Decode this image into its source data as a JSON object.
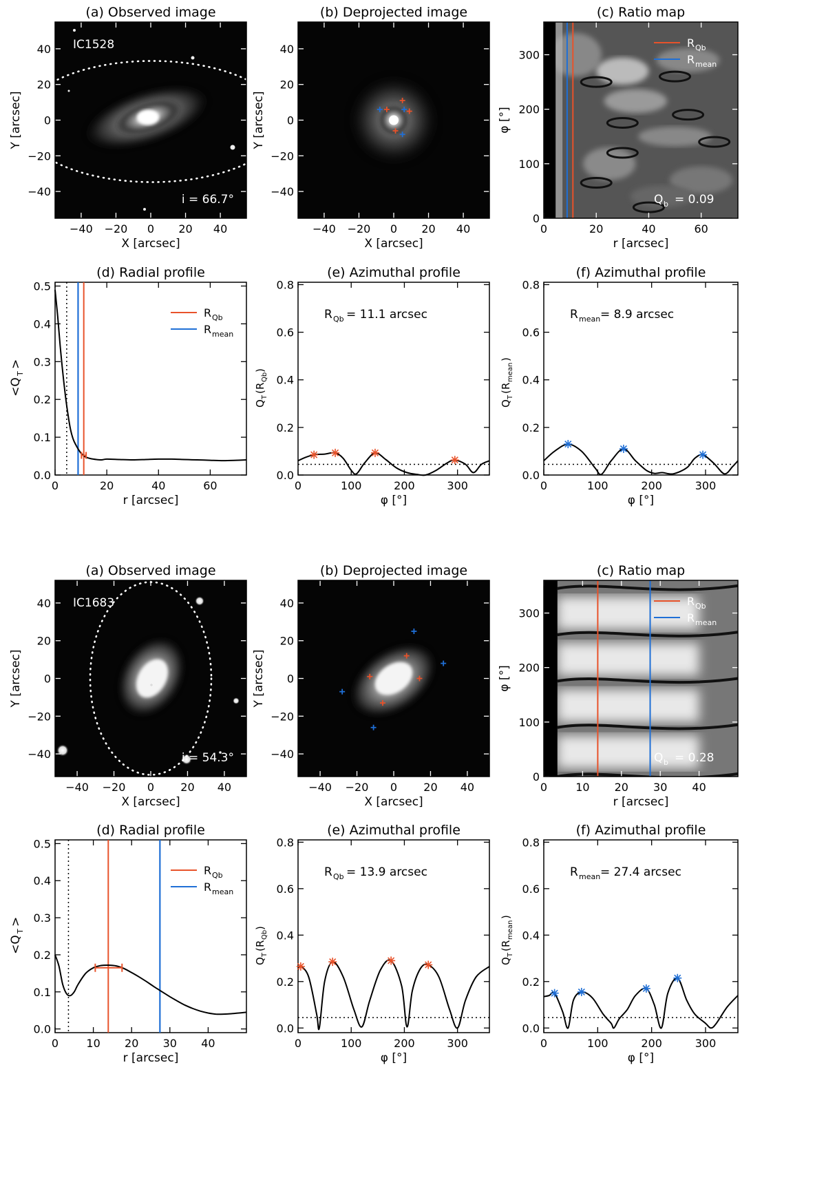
{
  "colors": {
    "qb": "#e8522a",
    "mean": "#1f6fd6",
    "axis": "#000000"
  },
  "galaxies": [
    {
      "name": "IC1528",
      "inclination_label": "i =  66.7°",
      "qb_label": "Q",
      "qb_sub": "b",
      "qb_value": "=   0.09",
      "panels": {
        "a": {
          "title": "(a) Observed image",
          "xlabel": "X [arcsec]",
          "ylabel": "Y [arcsec]",
          "xticks": [
            "−40",
            "−20",
            "0",
            "20",
            "40"
          ],
          "xtick_values": [
            -40,
            -20,
            0,
            20,
            40
          ],
          "yticks": [
            "−40",
            "−20",
            "0",
            "20",
            "40"
          ],
          "ytick_values": [
            -40,
            -20,
            0,
            20,
            40
          ],
          "xlim": [
            -55,
            55
          ],
          "ylim": [
            -55,
            55
          ]
        },
        "b": {
          "title": "(b) Deprojected image",
          "xlabel": "X [arcsec]",
          "ylabel": "Y [arcsec]",
          "xticks": [
            "−40",
            "−20",
            "0",
            "20",
            "40"
          ],
          "xtick_values": [
            -40,
            -20,
            0,
            20,
            40
          ],
          "yticks": [
            "−40",
            "−20",
            "0",
            "20",
            "40"
          ],
          "ytick_values": [
            -40,
            -20,
            0,
            20,
            40
          ],
          "xlim": [
            -55,
            55
          ],
          "ylim": [
            -55,
            55
          ]
        },
        "c": {
          "title": "(c) Ratio map",
          "xlabel": "r [arcsec]",
          "ylabel": "φ [°]",
          "xticks": [
            "0",
            "20",
            "40",
            "60"
          ],
          "xtick_values": [
            0,
            20,
            40,
            60
          ],
          "yticks": [
            "0",
            "100",
            "200",
            "300"
          ],
          "ytick_values": [
            0,
            100,
            200,
            300
          ],
          "xlim": [
            0,
            74
          ],
          "ylim": [
            0,
            360
          ],
          "r_qb": 11.1,
          "r_mean": 8.9,
          "r_mask": 4.5
        },
        "d": {
          "title": "(d) Radial profile",
          "xlabel": "r [arcsec]",
          "ylabel": "<Q",
          "ylabel_sub": "T",
          "ylabel_end": ">",
          "xticks": [
            "0",
            "20",
            "40",
            "60"
          ],
          "xtick_values": [
            0,
            20,
            40,
            60
          ],
          "yticks": [
            "0.0",
            "0.1",
            "0.2",
            "0.3",
            "0.4",
            "0.5"
          ],
          "ytick_values": [
            0,
            0.1,
            0.2,
            0.3,
            0.4,
            0.5
          ],
          "xlim": [
            0,
            74
          ],
          "ylim": [
            0,
            0.51
          ],
          "r_qb": 11.1,
          "r_mean": 8.9,
          "r_dotted": 4.5
        },
        "e": {
          "title": "(e) Azimuthal profile",
          "label_main": "R",
          "label_sub": "Qb",
          "label_value": " = 11.1 arcsec",
          "xlabel": "φ [°]",
          "ylabel": "Q",
          "xticks": [
            "0",
            "100",
            "200",
            "300"
          ],
          "xtick_values": [
            0,
            100,
            200,
            300
          ],
          "yticks": [
            "0.0",
            "0.2",
            "0.4",
            "0.6",
            "0.8"
          ],
          "ytick_values": [
            0,
            0.2,
            0.4,
            0.6,
            0.8
          ],
          "xlim": [
            0,
            360
          ],
          "ylim": [
            0,
            0.81
          ],
          "threshold": 0.045
        },
        "f": {
          "title": "(f) Azimuthal profile",
          "label_main": "R",
          "label_sub": "mean",
          "label_value": " =  8.9 arcsec",
          "xlabel": "φ [°]",
          "ylabel": "Q",
          "xticks": [
            "0",
            "100",
            "200",
            "300"
          ],
          "xtick_values": [
            0,
            100,
            200,
            300
          ],
          "yticks": [
            "0.0",
            "0.2",
            "0.4",
            "0.6",
            "0.8"
          ],
          "ytick_values": [
            0,
            0.2,
            0.4,
            0.6,
            0.8
          ],
          "xlim": [
            0,
            360
          ],
          "ylim": [
            0,
            0.81
          ],
          "threshold": 0.045
        }
      }
    },
    {
      "name": "IC1683",
      "inclination_label": "i = 54.3°",
      "qb_label": "Q",
      "qb_sub": "b",
      "qb_value": "=   0.28",
      "panels": {
        "a": {
          "title": "(a) Observed image",
          "xlabel": "X [arcsec]",
          "ylabel": "Y [arcsec]",
          "xticks": [
            "−40",
            "−20",
            "0",
            "20",
            "40"
          ],
          "xtick_values": [
            -40,
            -20,
            0,
            20,
            40
          ],
          "yticks": [
            "−40",
            "−20",
            "0",
            "20",
            "40"
          ],
          "ytick_values": [
            -40,
            -20,
            0,
            20,
            40
          ],
          "xlim": [
            -52,
            52
          ],
          "ylim": [
            -52,
            52
          ]
        },
        "b": {
          "title": "(b) Deprojected image",
          "xlabel": "X [arcsec]",
          "ylabel": "Y [arcsec]",
          "xticks": [
            "−40",
            "−20",
            "0",
            "20",
            "40"
          ],
          "xtick_values": [
            -40,
            -20,
            0,
            20,
            40
          ],
          "yticks": [
            "−40",
            "−20",
            "0",
            "20",
            "40"
          ],
          "ytick_values": [
            -40,
            -20,
            0,
            20,
            40
          ],
          "xlim": [
            -52,
            52
          ],
          "ylim": [
            -52,
            52
          ]
        },
        "c": {
          "title": "(c) Ratio map",
          "xlabel": "r [arcsec]",
          "ylabel": "φ [°]",
          "xticks": [
            "0",
            "10",
            "20",
            "30",
            "40"
          ],
          "xtick_values": [
            0,
            10,
            20,
            30,
            40
          ],
          "yticks": [
            "0",
            "100",
            "200",
            "300"
          ],
          "ytick_values": [
            0,
            100,
            200,
            300
          ],
          "xlim": [
            0,
            50
          ],
          "ylim": [
            0,
            360
          ],
          "r_qb": 13.9,
          "r_mean": 27.4,
          "r_mask": 3.5
        },
        "d": {
          "title": "(d) Radial profile",
          "xlabel": "r [arcsec]",
          "ylabel": "<Q",
          "ylabel_sub": "T",
          "ylabel_end": ">",
          "xticks": [
            "0",
            "10",
            "20",
            "30",
            "40"
          ],
          "xtick_values": [
            0,
            10,
            20,
            30,
            40
          ],
          "yticks": [
            "0.0",
            "0.1",
            "0.2",
            "0.3",
            "0.4",
            "0.5"
          ],
          "ytick_values": [
            0,
            0.1,
            0.2,
            0.3,
            0.4,
            0.5
          ],
          "xlim": [
            0,
            50
          ],
          "ylim": [
            -0.01,
            0.51
          ],
          "r_qb": 13.9,
          "r_mean": 27.4,
          "r_dotted": 3.5
        },
        "e": {
          "title": "(e) Azimuthal profile",
          "label_main": "R",
          "label_sub": "Qb",
          "label_value": " = 13.9 arcsec",
          "xlabel": "φ [°]",
          "ylabel": "Q",
          "xticks": [
            "0",
            "100",
            "200",
            "300"
          ],
          "xtick_values": [
            0,
            100,
            200,
            300
          ],
          "yticks": [
            "0.0",
            "0.2",
            "0.4",
            "0.6",
            "0.8"
          ],
          "ytick_values": [
            0,
            0.2,
            0.4,
            0.6,
            0.8
          ],
          "xlim": [
            0,
            360
          ],
          "ylim": [
            -0.02,
            0.81
          ],
          "threshold": 0.045
        },
        "f": {
          "title": "(f) Azimuthal profile",
          "label_main": "R",
          "label_sub": "mean",
          "label_value": " = 27.4 arcsec",
          "xlabel": "φ [°]",
          "ylabel": "Q",
          "xticks": [
            "0",
            "100",
            "200",
            "300"
          ],
          "xtick_values": [
            0,
            100,
            200,
            300
          ],
          "yticks": [
            "0.0",
            "0.2",
            "0.4",
            "0.6",
            "0.8"
          ],
          "ytick_values": [
            0,
            0.2,
            0.4,
            0.6,
            0.8
          ],
          "xlim": [
            0,
            360
          ],
          "ylim": [
            -0.02,
            0.81
          ],
          "threshold": 0.045
        }
      }
    }
  ],
  "legend": {
    "qb_main": "R",
    "qb_sub": "Qb",
    "mean_main": "R",
    "mean_sub": "mean"
  },
  "chart_data": [
    {
      "type": "line",
      "title": "(d) Radial profile",
      "galaxy": "IC1528",
      "xlabel": "r [arcsec]",
      "ylabel": "<QT>",
      "x": [
        0,
        1,
        2,
        3,
        4,
        5,
        6,
        7,
        8,
        9,
        10,
        11,
        12,
        14,
        16,
        18,
        20,
        25,
        30,
        35,
        40,
        45,
        50,
        55,
        60,
        65,
        70,
        74
      ],
      "y": [
        0.49,
        0.42,
        0.34,
        0.27,
        0.21,
        0.16,
        0.12,
        0.095,
        0.08,
        0.068,
        0.058,
        0.052,
        0.047,
        0.043,
        0.041,
        0.04,
        0.042,
        0.041,
        0.04,
        0.041,
        0.042,
        0.042,
        0.041,
        0.04,
        0.039,
        0.038,
        0.039,
        0.04
      ],
      "r_qb": 11.1,
      "r_mean": 8.9
    },
    {
      "type": "line",
      "title": "(e) Azimuthal profile",
      "galaxy": "IC1528",
      "xlabel": "φ [°]",
      "ylabel": "QT(RQb)",
      "x": [
        0,
        15,
        30,
        50,
        70,
        85,
        100,
        110,
        125,
        145,
        165,
        185,
        205,
        225,
        240,
        260,
        280,
        295,
        315,
        330,
        345,
        360
      ],
      "y": [
        0.06,
        0.075,
        0.085,
        0.088,
        0.093,
        0.07,
        0.02,
        0.005,
        0.05,
        0.093,
        0.065,
        0.03,
        0.01,
        0.002,
        0.0,
        0.02,
        0.05,
        0.063,
        0.045,
        0.01,
        0.045,
        0.06
      ],
      "peaks_x": [
        30,
        70,
        145,
        295
      ],
      "peaks_y": [
        0.085,
        0.093,
        0.093,
        0.063
      ]
    },
    {
      "type": "line",
      "title": "(f) Azimuthal profile",
      "galaxy": "IC1528",
      "xlabel": "φ [°]",
      "ylabel": "QT(Rmean)",
      "x": [
        0,
        20,
        45,
        70,
        95,
        107,
        125,
        148,
        170,
        190,
        205,
        220,
        240,
        265,
        280,
        295,
        315,
        335,
        350,
        360
      ],
      "y": [
        0.06,
        0.1,
        0.13,
        0.1,
        0.03,
        0.003,
        0.06,
        0.11,
        0.06,
        0.02,
        0.007,
        0.01,
        0.005,
        0.03,
        0.07,
        0.085,
        0.05,
        0.005,
        0.035,
        0.06
      ],
      "peaks_x": [
        45,
        148,
        295
      ],
      "peaks_y": [
        0.13,
        0.11,
        0.085
      ]
    },
    {
      "type": "line",
      "title": "(d) Radial profile",
      "galaxy": "IC1683",
      "xlabel": "r [arcsec]",
      "ylabel": "<QT>",
      "x": [
        0,
        1,
        2,
        3,
        4,
        5,
        6,
        8,
        10,
        12,
        13.9,
        16,
        18,
        20,
        22,
        24,
        26,
        28,
        30,
        32,
        34,
        36,
        38,
        40,
        42,
        44,
        46,
        48,
        50
      ],
      "y": [
        0.2,
        0.17,
        0.12,
        0.095,
        0.09,
        0.1,
        0.12,
        0.15,
        0.165,
        0.171,
        0.172,
        0.17,
        0.163,
        0.152,
        0.14,
        0.127,
        0.113,
        0.1,
        0.087,
        0.075,
        0.064,
        0.055,
        0.048,
        0.043,
        0.04,
        0.04,
        0.041,
        0.043,
        0.045
      ],
      "r_qb": 13.9,
      "r_mean": 27.4,
      "qb_err": [
        10.5,
        17.5
      ],
      "qb_value": 0.165
    },
    {
      "type": "line",
      "title": "(e) Azimuthal profile",
      "galaxy": "IC1683",
      "xlabel": "φ [°]",
      "ylabel": "QT(RQb)",
      "x": [
        0,
        5,
        20,
        35,
        40,
        50,
        65,
        85,
        105,
        120,
        135,
        155,
        175,
        195,
        205,
        215,
        230,
        245,
        265,
        285,
        300,
        315,
        335,
        360
      ],
      "y": [
        0.25,
        0.265,
        0.22,
        0.06,
        0.0,
        0.2,
        0.285,
        0.22,
        0.08,
        0.005,
        0.12,
        0.25,
        0.29,
        0.18,
        0.005,
        0.16,
        0.255,
        0.272,
        0.22,
        0.08,
        0.0,
        0.12,
        0.22,
        0.265
      ],
      "peaks_x": [
        5,
        65,
        175,
        245
      ],
      "peaks_y": [
        0.265,
        0.285,
        0.29,
        0.272
      ]
    },
    {
      "type": "line",
      "title": "(f) Azimuthal profile",
      "galaxy": "IC1683",
      "xlabel": "φ [°]",
      "ylabel": "QT(Rmean)",
      "x": [
        0,
        10,
        20,
        35,
        45,
        55,
        70,
        90,
        110,
        125,
        130,
        140,
        155,
        170,
        190,
        205,
        218,
        230,
        248,
        265,
        280,
        300,
        310,
        320,
        340,
        360
      ],
      "y": [
        0.135,
        0.14,
        0.15,
        0.07,
        0.0,
        0.12,
        0.155,
        0.13,
        0.06,
        0.02,
        0.0,
        0.04,
        0.08,
        0.14,
        0.17,
        0.1,
        0.0,
        0.15,
        0.215,
        0.12,
        0.06,
        0.02,
        0.0,
        0.02,
        0.09,
        0.14
      ],
      "peaks_x": [
        20,
        70,
        190,
        248
      ],
      "peaks_y": [
        0.15,
        0.155,
        0.17,
        0.215
      ]
    }
  ]
}
